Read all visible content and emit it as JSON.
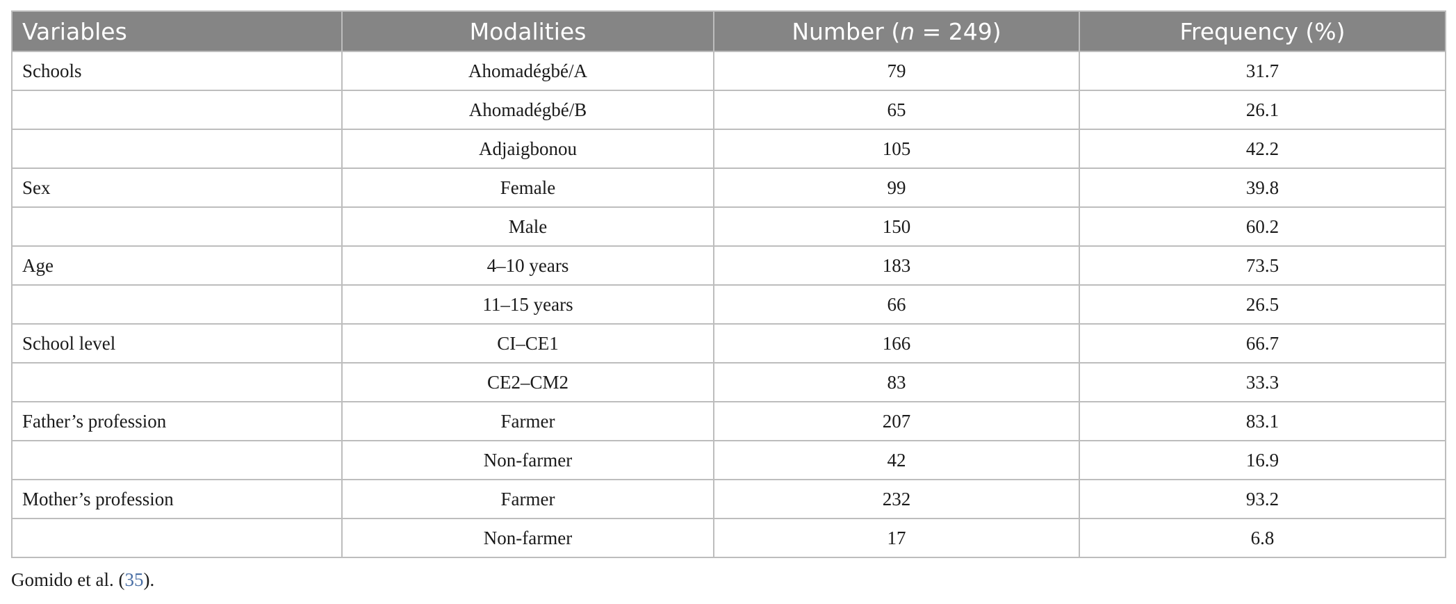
{
  "table": {
    "headers": {
      "variables": "Variables",
      "modalities": "Modalities",
      "number_prefix": "Number (",
      "number_n": "n",
      "number_suffix": " = 249)",
      "frequency": "Frequency (%)"
    },
    "rows": [
      {
        "variable": "Schools",
        "modality": "Ahomadégbé/A",
        "number": "79",
        "frequency": "31.7"
      },
      {
        "variable": "",
        "modality": "Ahomadégbé/B",
        "number": "65",
        "frequency": "26.1"
      },
      {
        "variable": "",
        "modality": "Adjaigbonou",
        "number": "105",
        "frequency": "42.2"
      },
      {
        "variable": "Sex",
        "modality": "Female",
        "number": "99",
        "frequency": "39.8"
      },
      {
        "variable": "",
        "modality": "Male",
        "number": "150",
        "frequency": "60.2"
      },
      {
        "variable": "Age",
        "modality": "4–10 years",
        "number": "183",
        "frequency": "73.5"
      },
      {
        "variable": "",
        "modality": "11–15 years",
        "number": "66",
        "frequency": "26.5"
      },
      {
        "variable": "School level",
        "modality": "CI–CE1",
        "number": "166",
        "frequency": "66.7"
      },
      {
        "variable": "",
        "modality": "CE2–CM2",
        "number": "83",
        "frequency": "33.3"
      },
      {
        "variable": "Father’s profession",
        "modality": "Farmer",
        "number": "207",
        "frequency": "83.1"
      },
      {
        "variable": "",
        "modality": "Non-farmer",
        "number": "42",
        "frequency": "16.9"
      },
      {
        "variable": "Mother’s profession",
        "modality": "Farmer",
        "number": "232",
        "frequency": "93.2"
      },
      {
        "variable": "",
        "modality": "Non-farmer",
        "number": "17",
        "frequency": "6.8"
      }
    ]
  },
  "footnote": {
    "text_before": "Gomido et al. (",
    "ref": "35",
    "text_after": ")."
  },
  "colors": {
    "header_bg": "#858585",
    "header_text": "#ffffff",
    "grid": "#bdbdbd",
    "link": "#4a6fa5"
  }
}
